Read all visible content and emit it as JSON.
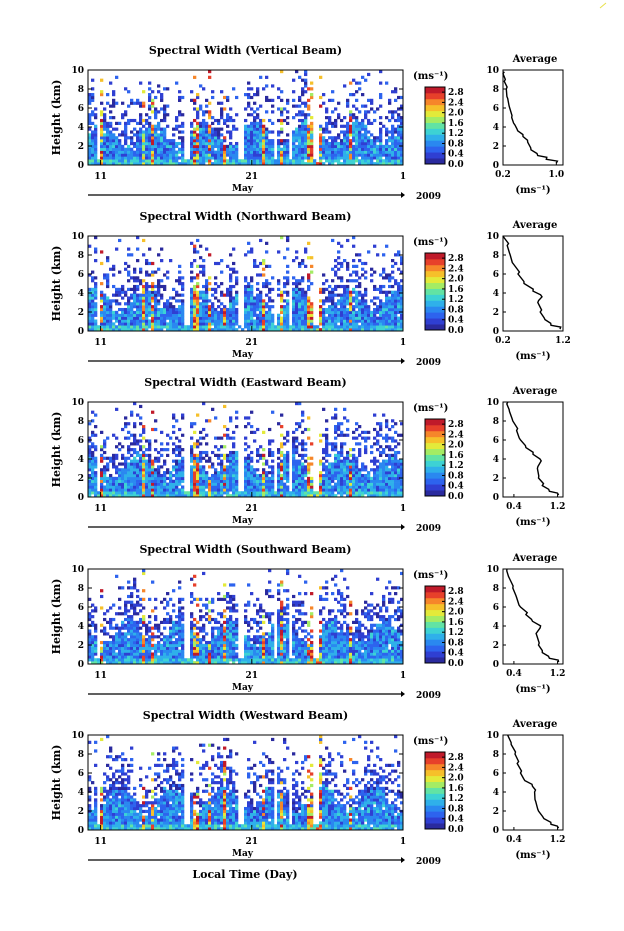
{
  "figure": {
    "xlabel": "Local Time (Day)",
    "month_label": "May",
    "year_label": "2009"
  },
  "colors": {
    "colorbar": [
      "#2a2a9e",
      "#2f3fd2",
      "#2d63ee",
      "#2a88f0",
      "#2fb0ea",
      "#3dd2d4",
      "#62e3a4",
      "#a4ec64",
      "#e3ea3a",
      "#f6c02a",
      "#f6862a",
      "#e7402a",
      "#c01a2a"
    ]
  },
  "chart_data": [
    {
      "type": "heatmap",
      "title": "Spectral Width (Vertical Beam)",
      "ylabel": "Height (km)",
      "ylim": [
        0,
        10
      ],
      "yticks": [
        "0",
        "2",
        "4",
        "6",
        "8",
        "10"
      ],
      "xticks": [
        "11",
        "21",
        "1"
      ],
      "colorbar": {
        "label": "(ms⁻¹)",
        "ticks": [
          "0.0",
          "0.4",
          "0.8",
          "1.2",
          "1.6",
          "2.0",
          "2.4",
          "2.8"
        ],
        "range": [
          0,
          3.0
        ]
      },
      "average": {
        "title": "Average",
        "xlabel": "(ms⁻¹)",
        "xlim": [
          0.2,
          1.1
        ],
        "xticks": [
          "0.2",
          "1.0"
        ],
        "yticks": [
          "0",
          "2",
          "4",
          "6",
          "8",
          "10"
        ],
        "profile": [
          [
            1.0,
            0.2
          ],
          [
            0.85,
            0.6
          ],
          [
            0.72,
            1.0
          ],
          [
            0.62,
            1.6
          ],
          [
            0.57,
            2.4
          ],
          [
            0.5,
            3.0
          ],
          [
            0.42,
            3.6
          ],
          [
            0.38,
            4.2
          ],
          [
            0.33,
            5.0
          ],
          [
            0.3,
            6.0
          ],
          [
            0.27,
            7.0
          ],
          [
            0.25,
            8.0
          ],
          [
            0.22,
            8.8
          ],
          [
            0.2,
            9.6
          ]
        ]
      }
    },
    {
      "type": "heatmap",
      "title": "Spectral Width (Northward Beam)",
      "ylabel": "Height (km)",
      "ylim": [
        0,
        10
      ],
      "yticks": [
        "0",
        "2",
        "4",
        "6",
        "8",
        "10"
      ],
      "xticks": [
        "11",
        "21",
        "1"
      ],
      "colorbar": {
        "label": "(ms⁻¹)",
        "ticks": [
          "0.0",
          "0.4",
          "0.8",
          "1.2",
          "1.6",
          "2.0",
          "2.4",
          "2.8"
        ],
        "range": [
          0,
          3.0
        ]
      },
      "average": {
        "title": "Average",
        "xlabel": "(ms⁻¹)",
        "xlim": [
          0.2,
          1.2
        ],
        "xticks": [
          "0.2",
          "1.2"
        ],
        "yticks": [
          "0",
          "2",
          "4",
          "6",
          "8",
          "10"
        ],
        "profile": [
          [
            1.15,
            0.2
          ],
          [
            1.0,
            0.6
          ],
          [
            0.9,
            1.2
          ],
          [
            0.82,
            2.0
          ],
          [
            0.78,
            3.0
          ],
          [
            0.85,
            3.6
          ],
          [
            0.7,
            4.2
          ],
          [
            0.55,
            5.0
          ],
          [
            0.45,
            6.0
          ],
          [
            0.38,
            7.0
          ],
          [
            0.32,
            8.0
          ],
          [
            0.27,
            9.0
          ],
          [
            0.22,
            9.8
          ]
        ]
      }
    },
    {
      "type": "heatmap",
      "title": "Spectral Width (Eastward Beam)",
      "ylabel": "Height (km)",
      "ylim": [
        0,
        10
      ],
      "yticks": [
        "0",
        "2",
        "4",
        "6",
        "8",
        "10"
      ],
      "xticks": [
        "11",
        "21",
        "1"
      ],
      "colorbar": {
        "label": "(ms⁻¹)",
        "ticks": [
          "0.0",
          "0.4",
          "0.8",
          "1.2",
          "1.6",
          "2.0",
          "2.4",
          "2.8"
        ],
        "range": [
          0,
          3.0
        ]
      },
      "average": {
        "title": "Average",
        "xlabel": "(ms⁻¹)",
        "xlim": [
          0.2,
          1.3
        ],
        "xticks": [
          "0.4",
          "1.2"
        ],
        "yticks": [
          "0",
          "2",
          "4",
          "6",
          "8",
          "10"
        ],
        "profile": [
          [
            1.22,
            0.2
          ],
          [
            1.05,
            0.6
          ],
          [
            0.92,
            1.2
          ],
          [
            0.85,
            2.0
          ],
          [
            0.83,
            3.0
          ],
          [
            0.9,
            3.8
          ],
          [
            0.75,
            4.5
          ],
          [
            0.62,
            5.2
          ],
          [
            0.52,
            6.0
          ],
          [
            0.45,
            7.0
          ],
          [
            0.38,
            8.0
          ],
          [
            0.32,
            9.0
          ],
          [
            0.27,
            9.8
          ]
        ]
      }
    },
    {
      "type": "heatmap",
      "title": "Spectral Width (Southward Beam)",
      "ylabel": "Height (km)",
      "ylim": [
        0,
        10
      ],
      "yticks": [
        "0",
        "2",
        "4",
        "6",
        "8",
        "10"
      ],
      "xticks": [
        "11",
        "21",
        "1"
      ],
      "colorbar": {
        "label": "(ms⁻¹)",
        "ticks": [
          "0.0",
          "0.4",
          "0.8",
          "1.2",
          "1.6",
          "2.0",
          "2.4",
          "2.8"
        ],
        "range": [
          0,
          3.0
        ]
      },
      "average": {
        "title": "Average",
        "xlabel": "(ms⁻¹)",
        "xlim": [
          0.2,
          1.3
        ],
        "xticks": [
          "0.4",
          "1.2"
        ],
        "yticks": [
          "0",
          "2",
          "4",
          "6",
          "8",
          "10"
        ],
        "profile": [
          [
            1.22,
            0.2
          ],
          [
            1.05,
            0.6
          ],
          [
            0.92,
            1.2
          ],
          [
            0.85,
            2.0
          ],
          [
            0.82,
            3.0
          ],
          [
            0.88,
            3.8
          ],
          [
            0.74,
            4.5
          ],
          [
            0.62,
            5.2
          ],
          [
            0.52,
            6.0
          ],
          [
            0.45,
            7.0
          ],
          [
            0.38,
            8.0
          ],
          [
            0.32,
            9.0
          ],
          [
            0.27,
            9.8
          ]
        ]
      }
    },
    {
      "type": "heatmap",
      "title": "Spectral Width (Westward Beam)",
      "ylabel": "Height (km)",
      "ylim": [
        0,
        10
      ],
      "yticks": [
        "0",
        "2",
        "4",
        "6",
        "8",
        "10"
      ],
      "xticks": [
        "11",
        "21",
        "1"
      ],
      "colorbar": {
        "label": "(ms⁻¹)",
        "ticks": [
          "0.0",
          "0.4",
          "0.8",
          "1.2",
          "1.6",
          "2.0",
          "2.4",
          "2.8"
        ],
        "range": [
          0,
          3.0
        ]
      },
      "average": {
        "title": "Average",
        "xlabel": "(ms⁻¹)",
        "xlim": [
          0.2,
          1.3
        ],
        "xticks": [
          "0.4",
          "1.2"
        ],
        "yticks": [
          "0",
          "2",
          "4",
          "6",
          "8",
          "10"
        ],
        "profile": [
          [
            1.22,
            0.2
          ],
          [
            1.08,
            0.6
          ],
          [
            0.95,
            1.2
          ],
          [
            0.85,
            2.0
          ],
          [
            0.8,
            3.0
          ],
          [
            0.78,
            4.0
          ],
          [
            0.74,
            4.6
          ],
          [
            0.6,
            5.2
          ],
          [
            0.52,
            6.0
          ],
          [
            0.46,
            7.0
          ],
          [
            0.42,
            8.0
          ],
          [
            0.35,
            9.0
          ],
          [
            0.3,
            9.8
          ]
        ]
      }
    }
  ]
}
